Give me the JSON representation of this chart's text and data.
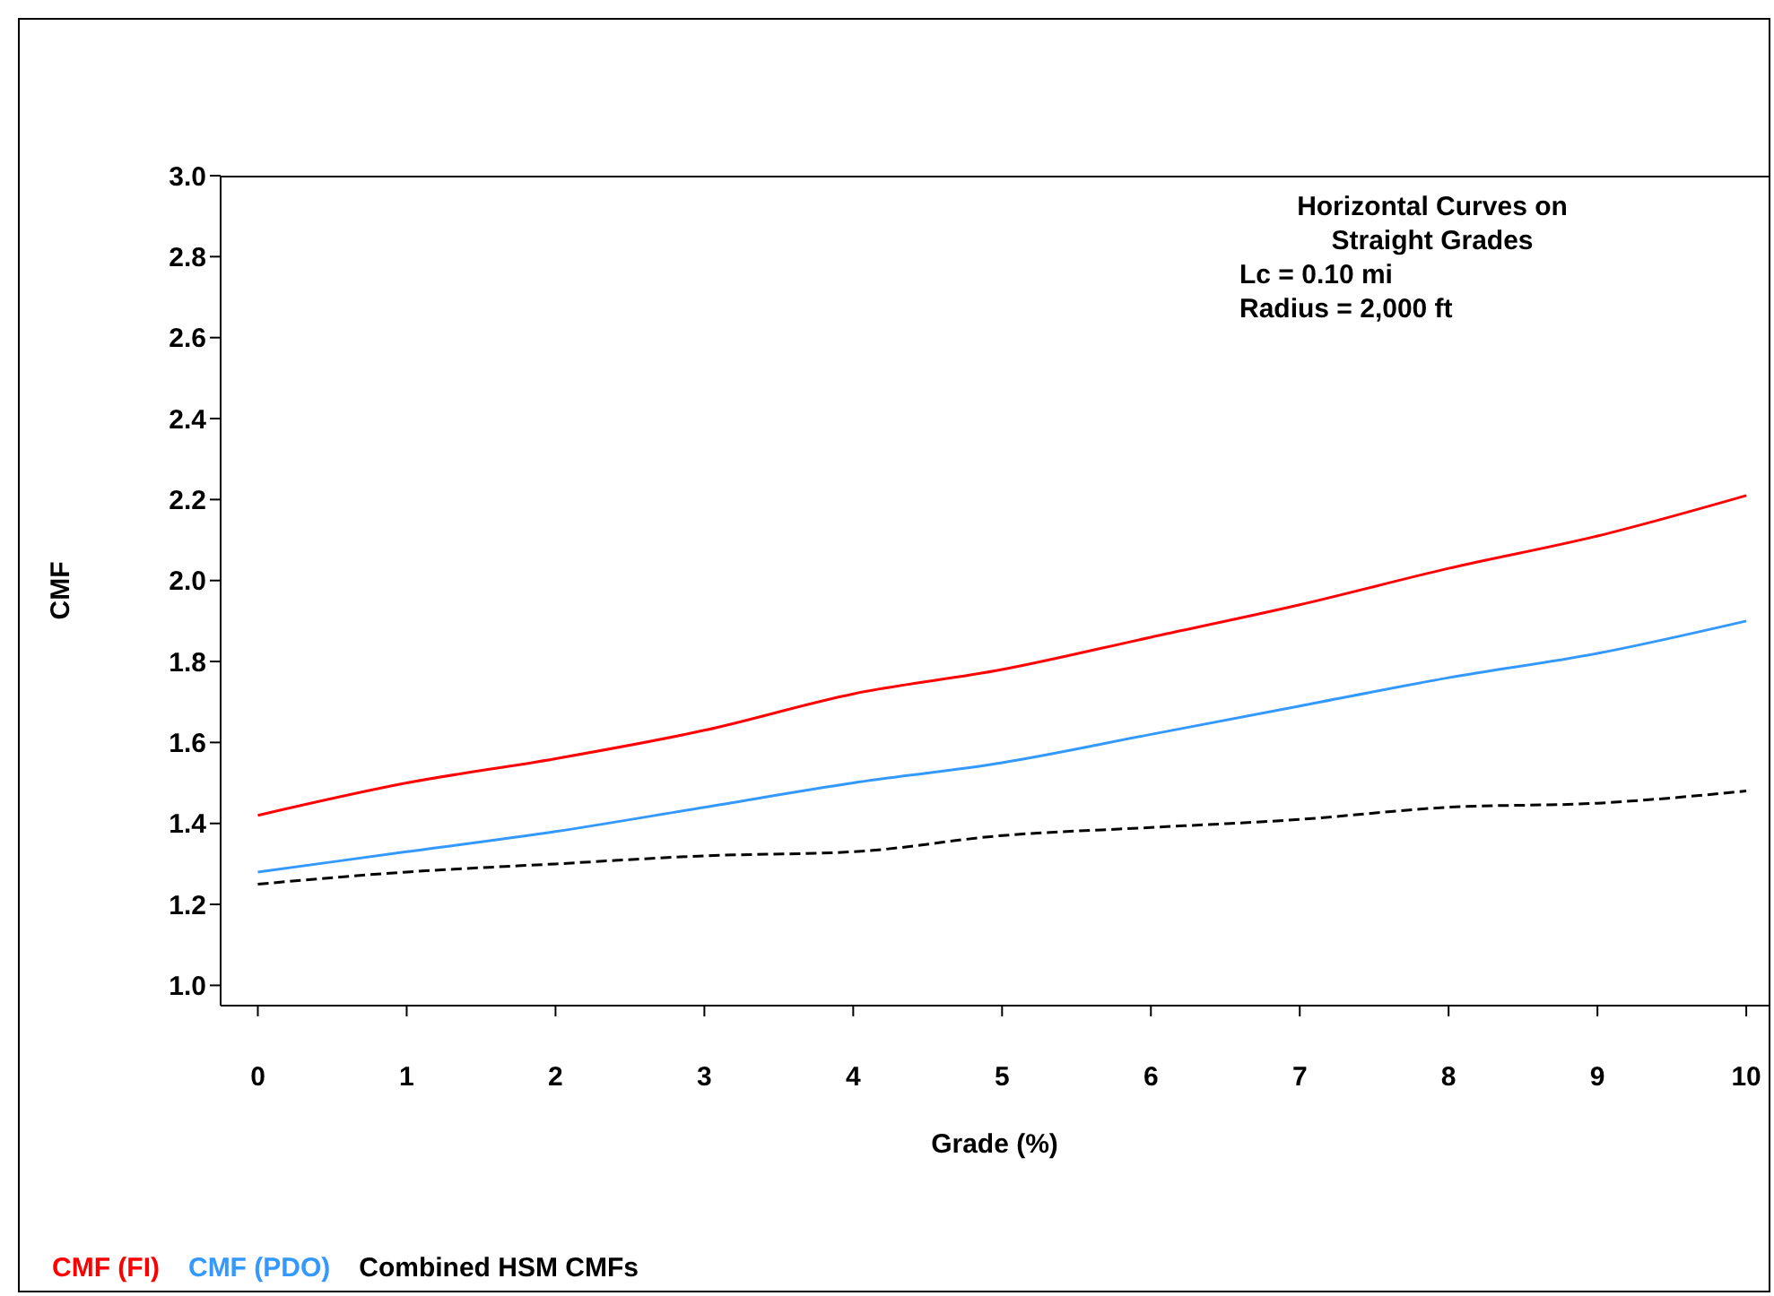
{
  "chart_data": {
    "type": "line",
    "xlabel": "Grade (%)",
    "ylabel": "CMF",
    "annotations": [
      "Horizontal Curves on\nStraight Grades",
      "Lc = 0.10 mi",
      "Radius = 2,000 ft"
    ],
    "x": [
      0,
      1,
      2,
      3,
      4,
      5,
      6,
      7,
      8,
      9,
      10
    ],
    "xlim": [
      -0.25,
      10.15
    ],
    "xticks": [
      0,
      1,
      2,
      3,
      4,
      5,
      6,
      7,
      8,
      9,
      10
    ],
    "ylim": [
      0.95,
      3.0
    ],
    "yticks": [
      {
        "value": 1,
        "label": "1.0"
      },
      1.2,
      1.4,
      1.6,
      1.8,
      {
        "value": 2,
        "label": "2.0"
      },
      2.2,
      2.4,
      2.6,
      2.8,
      {
        "value": 3,
        "label": "3.0"
      }
    ],
    "grid": false,
    "legend": "bottom left",
    "marker": "none",
    "line_style": "solid",
    "series": [
      {
        "name": "CMF (FI)",
        "color": "#ff0000",
        "values": [
          1.42,
          1.5,
          1.56,
          1.63,
          1.72,
          1.78,
          1.86,
          1.94,
          2.03,
          2.11,
          2.21
        ]
      },
      {
        "name": "CMF (PDO)",
        "color": "#3399ff",
        "values": [
          1.28,
          1.33,
          1.38,
          1.44,
          1.5,
          1.55,
          1.62,
          1.69,
          1.76,
          1.82,
          1.9
        ]
      },
      {
        "name": "Combined HSM CMFs",
        "color": "#000000",
        "line_style": "dashed",
        "values": [
          1.25,
          1.28,
          1.3,
          1.32,
          1.33,
          1.37,
          1.39,
          1.41,
          1.44,
          1.45,
          1.48
        ]
      }
    ]
  }
}
